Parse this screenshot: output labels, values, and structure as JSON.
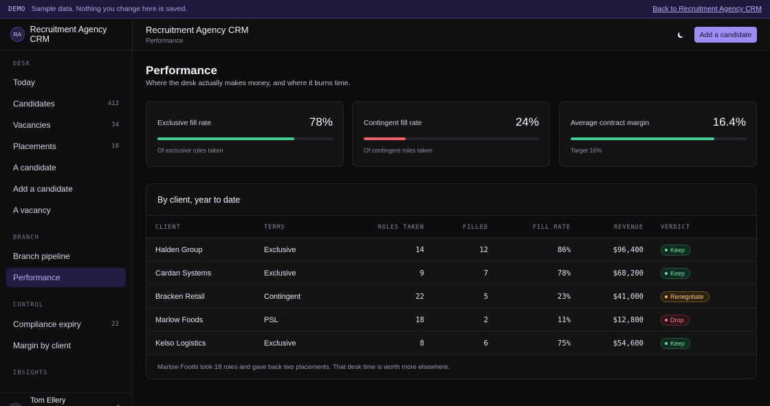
{
  "banner": {
    "tag": "DEMO",
    "message": "Sample data. Nothing you change here is saved.",
    "back_link": "Back to Recruitment Agency CRM"
  },
  "brand": {
    "initials": "RA",
    "name": "Recruitment Agency CRM"
  },
  "sidebar": {
    "sections": [
      {
        "label": "DESK"
      },
      {
        "label": "BRANCH"
      },
      {
        "label": "CONTROL"
      },
      {
        "label": "INSIGHTS"
      }
    ],
    "items": [
      {
        "label": "Today",
        "count": ""
      },
      {
        "label": "Candidates",
        "count": "412"
      },
      {
        "label": "Vacancies",
        "count": "34"
      },
      {
        "label": "Placements",
        "count": "18"
      },
      {
        "label": "A candidate",
        "count": ""
      },
      {
        "label": "Add a candidate",
        "count": ""
      },
      {
        "label": "A vacancy",
        "count": ""
      },
      {
        "label": "Branch pipeline",
        "count": ""
      },
      {
        "label": "Performance",
        "count": "",
        "active": true
      },
      {
        "label": "Compliance expiry",
        "count": "22"
      },
      {
        "label": "Margin by client",
        "count": ""
      }
    ],
    "user": {
      "initials": "TE",
      "name": "Tom Ellery"
    }
  },
  "header": {
    "title": "Recruitment Agency CRM",
    "breadcrumb": "Performance",
    "theme_icon": "moon-icon",
    "add_button": "Add a candidate"
  },
  "page": {
    "title": "Performance",
    "subtitle": "Where the desk actually makes money, and where it burns time."
  },
  "kpis": [
    {
      "label": "Exclusive fill rate",
      "value": "78%",
      "progress": 0.78,
      "color": "#3ecf8e",
      "note": "Of exclusive roles taken"
    },
    {
      "label": "Contingent fill rate",
      "value": "24%",
      "progress": 0.24,
      "color": "#f0606c",
      "note": "Of contingent roles taken"
    },
    {
      "label": "Average contract margin",
      "value": "16.4%",
      "progress": 0.82,
      "color": "#3ecf8e",
      "note": "Target 16%"
    }
  ],
  "table": {
    "title": "By client, year to date",
    "columns": [
      "CLIENT",
      "TERMS",
      "ROLES TAKEN",
      "FILLED",
      "FILL RATE",
      "REVENUE",
      "VERDICT"
    ],
    "rows": [
      {
        "client": "Halden Group",
        "terms": "Exclusive",
        "roles": "14",
        "filled": "12",
        "rate": "86%",
        "revenue": "$96,400",
        "verdict": "Keep",
        "kind": "keep"
      },
      {
        "client": "Cardan Systems",
        "terms": "Exclusive",
        "roles": "9",
        "filled": "7",
        "rate": "78%",
        "revenue": "$68,200",
        "verdict": "Keep",
        "kind": "keep"
      },
      {
        "client": "Bracken Retail",
        "terms": "Contingent",
        "roles": "22",
        "filled": "5",
        "rate": "23%",
        "revenue": "$41,000",
        "verdict": "Renegotiate",
        "kind": "reneg"
      },
      {
        "client": "Marlow Foods",
        "terms": "PSL",
        "roles": "18",
        "filled": "2",
        "rate": "11%",
        "revenue": "$12,800",
        "verdict": "Drop",
        "kind": "drop"
      },
      {
        "client": "Kelso Logistics",
        "terms": "Exclusive",
        "roles": "8",
        "filled": "6",
        "rate": "75%",
        "revenue": "$54,600",
        "verdict": "Keep",
        "kind": "keep"
      }
    ],
    "footnote": "Marlow Foods took 18 roles and gave back two placements. That desk time is worth more elsewhere."
  }
}
